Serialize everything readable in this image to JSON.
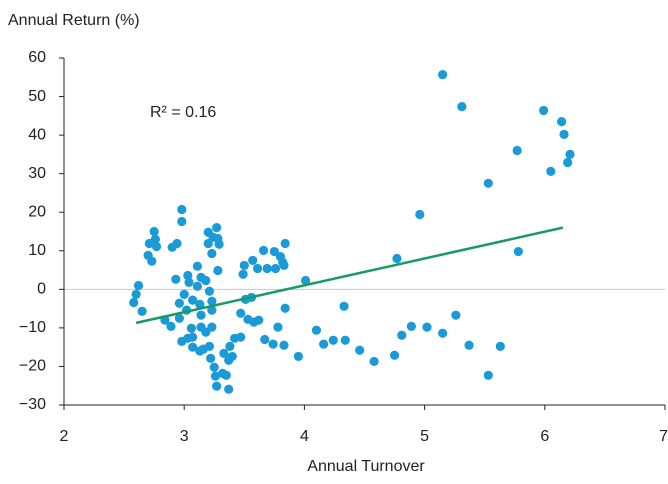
{
  "chart_data": {
    "type": "scatter",
    "xlabel": "Annual Turnover",
    "ylabel": "Annual Return (%)",
    "annotation": "R² = 0.16",
    "xlim": [
      2,
      7
    ],
    "xticks": [
      2,
      3,
      4,
      5,
      6,
      7
    ],
    "ylim": [
      -30,
      60
    ],
    "yticks": [
      {
        "value": -30,
        "label": "−30"
      },
      {
        "value": -20,
        "label": "−20"
      },
      {
        "value": -10,
        "label": "−10"
      },
      0,
      10,
      20,
      30,
      40,
      50,
      60
    ],
    "zero_line": true,
    "series": [
      {
        "color": "#1a9ad6",
        "x": [
          2.58,
          2.6,
          2.62,
          2.65,
          2.7,
          2.71,
          2.73,
          2.75,
          2.76,
          2.77,
          2.84,
          2.89,
          2.9,
          2.93,
          2.94,
          2.96,
          2.96,
          2.98,
          2.98,
          2.98,
          3.0,
          3.02,
          3.03,
          3.03,
          3.04,
          3.06,
          3.07,
          3.07,
          3.07,
          3.11,
          3.11,
          3.13,
          3.13,
          3.14,
          3.14,
          3.14,
          3.16,
          3.18,
          3.18,
          3.2,
          3.2,
          3.21,
          3.21,
          3.22,
          3.23,
          3.23,
          3.23,
          3.23,
          3.24,
          3.25,
          3.26,
          3.27,
          3.27,
          3.28,
          3.28,
          3.29,
          3.32,
          3.33,
          3.35,
          3.37,
          3.37,
          3.38,
          3.4,
          3.42,
          3.47,
          3.47,
          3.49,
          3.5,
          3.51,
          3.53,
          3.56,
          3.57,
          3.58,
          3.61,
          3.62,
          3.66,
          3.67,
          3.69,
          3.74,
          3.75,
          3.76,
          3.78,
          3.8,
          3.82,
          3.83,
          3.83,
          3.84,
          3.84,
          3.95,
          4.01,
          4.1,
          4.16,
          4.24,
          4.33,
          4.34,
          4.46,
          4.58,
          4.75,
          4.77,
          4.81,
          4.89,
          4.96,
          5.02,
          5.15,
          5.15,
          5.26,
          5.31,
          5.37,
          5.53,
          5.53,
          5.63,
          5.77,
          5.78,
          5.99,
          6.05,
          6.14,
          6.16,
          6.19,
          6.21
        ],
        "values": [
          -3.4,
          -1.3,
          1,
          -5.7,
          8.8,
          11.9,
          7.3,
          15,
          13,
          11.1,
          -8,
          -9.6,
          10.9,
          2.6,
          11.9,
          -7.5,
          -3.6,
          20.7,
          17.6,
          -13.5,
          -1.3,
          -5.4,
          3.6,
          -12.7,
          1.8,
          -10.1,
          -15,
          -2.8,
          -12.4,
          6,
          0.8,
          -3.9,
          -16,
          -6.7,
          -9.8,
          3.1,
          -15.5,
          -11.1,
          2.3,
          14.8,
          11.9,
          -0.5,
          -14.8,
          -17.9,
          -9.8,
          -3.1,
          9.3,
          -5.4,
          13.5,
          -20.2,
          -22.5,
          16,
          -25.1,
          13.2,
          4.9,
          11.7,
          -21.8,
          -16.6,
          -22.3,
          -25.9,
          -18.4,
          -14.8,
          -17.4,
          -12.7,
          -6.2,
          -12.4,
          3.9,
          6.2,
          -2.6,
          -7.8,
          -2.1,
          7.5,
          -8.5,
          5.4,
          -8,
          10.1,
          -13,
          5.4,
          -14.2,
          9.8,
          5.4,
          -9.8,
          8.5,
          7,
          6.2,
          -14.5,
          11.9,
          -4.9,
          -17.4,
          2.3,
          -10.6,
          -14.2,
          -13.2,
          -4.4,
          -13.2,
          -15.8,
          -18.7,
          -17.1,
          8,
          -11.9,
          -9.6,
          19.4,
          -9.8,
          -11.4,
          55.7,
          -6.7,
          47.4,
          -14.5,
          -22.3,
          27.5,
          -14.8,
          36,
          9.8,
          46.4,
          30.6,
          43.5,
          40.2,
          32.9,
          35
        ]
      }
    ],
    "trendline": {
      "color": "#169b62",
      "x": [
        2.6,
        6.15
      ],
      "values": [
        -8.7,
        16
      ]
    }
  }
}
